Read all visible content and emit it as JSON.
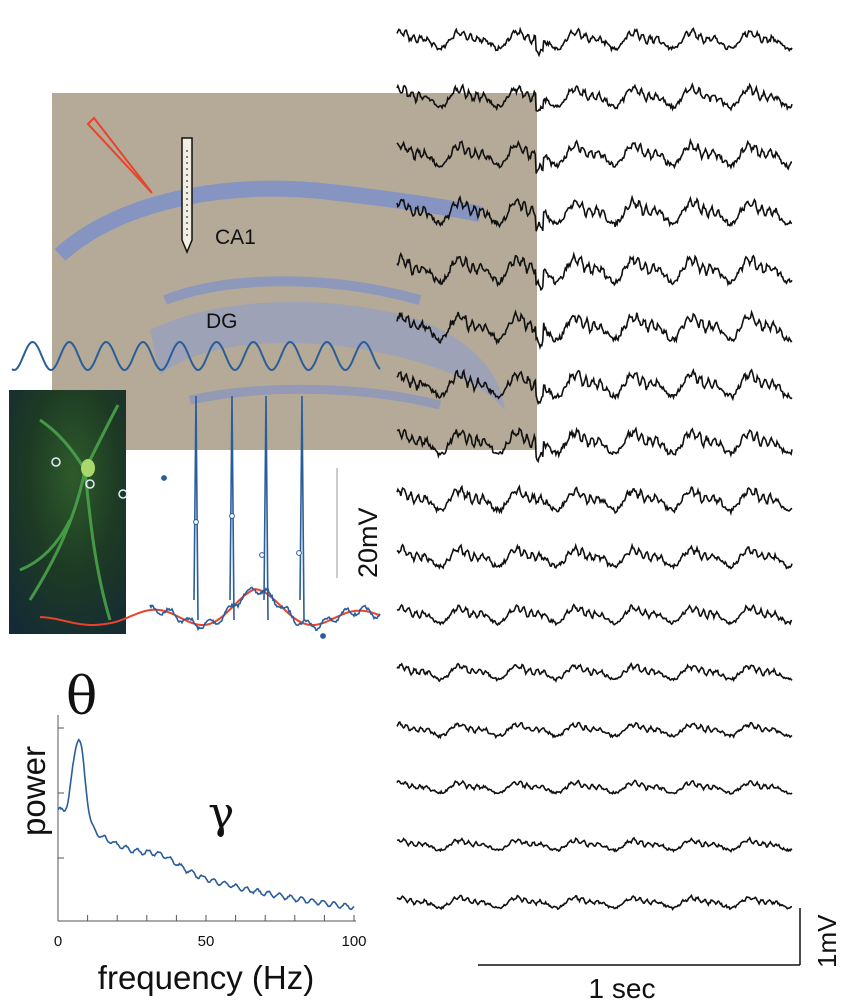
{
  "histology": {
    "label_ca1": "CA1",
    "label_dg": "DG"
  },
  "intracellular": {
    "scale_label": "20mV"
  },
  "spectrum": {
    "theta_symbol": "θ",
    "gamma_symbol": "γ",
    "ylabel": "power",
    "xlabel": "frequency (Hz)",
    "x_ticks": [
      "0",
      "50",
      "100"
    ]
  },
  "lfp_traces": {
    "n_traces": 16,
    "time_scale_label": "1 sec",
    "voltage_scale_label": "1mV"
  },
  "colors": {
    "trace": "#111111",
    "blue": "#2a5d9a",
    "red": "#e8432b",
    "histology_bg": "#b7ad9a",
    "cell_layer": "#7e90c9",
    "fluorescence": "#49a34a"
  }
}
